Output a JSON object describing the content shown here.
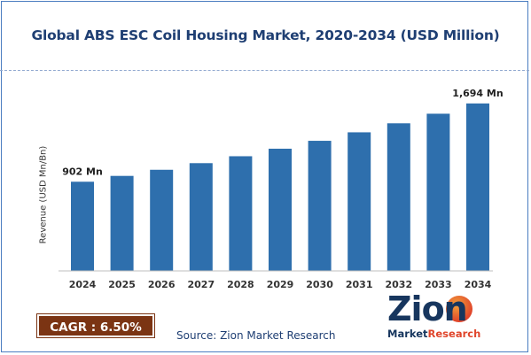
{
  "title": "Global ABS ESC Coil Housing Market, 2020-2034 (USD Million)",
  "cagr": "CAGR : 6.50%",
  "source": "Source: Zion Market Research",
  "logo": {
    "main": "Zion",
    "sub_a": "Market",
    "sub_b": "Research"
  },
  "colors": {
    "bar": "#2e6fad",
    "title": "#1f3f73",
    "cagr_bg": "#7b3413"
  },
  "chart_data": {
    "type": "bar",
    "title": "Global ABS ESC Coil Housing Market, 2020-2034 (USD Million)",
    "xlabel": "",
    "ylabel": "Revenue (USD Mn/Bn)",
    "categories": [
      "2024",
      "2025",
      "2026",
      "2027",
      "2028",
      "2029",
      "2030",
      "2031",
      "2032",
      "2033",
      "2034"
    ],
    "values": [
      902,
      961,
      1023,
      1090,
      1160,
      1236,
      1316,
      1402,
      1493,
      1590,
      1694
    ],
    "data_labels": {
      "2024": "902 Mn",
      "2034": "1,694 Mn"
    },
    "ylim": [
      0,
      1800
    ],
    "grid": false,
    "legend": "none"
  }
}
